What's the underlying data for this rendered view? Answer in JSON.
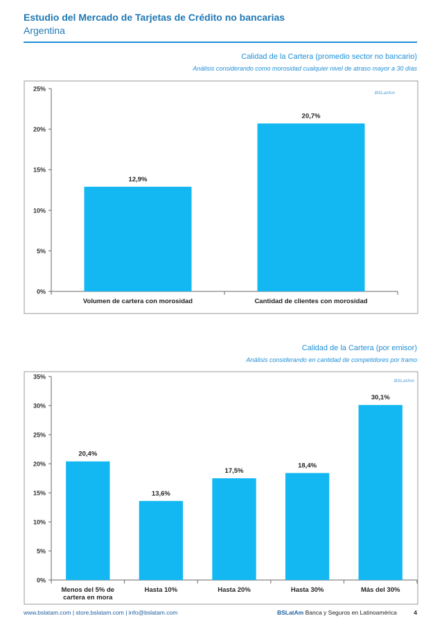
{
  "header": {
    "title": "Estudio del Mercado de Tarjetas de Crédito no bancarias",
    "subtitle": "Argentina"
  },
  "section1": {
    "title": "Calidad de la Cartera (promedio sector no bancario)",
    "subtitle": "Análisis considerando como morosidad cualquier nivel de atraso mayor a 30 días"
  },
  "section2": {
    "title": "Calidad de la Cartera (por emisor)",
    "subtitle": "Análisis considerando en cantidad de competidores por tramo"
  },
  "chart_data": [
    {
      "type": "bar",
      "watermark": "BSLatAm",
      "categories": [
        "Volumen de cartera con morosidad",
        "Cantidad de clientes con morosidad"
      ],
      "values": [
        12.9,
        20.7
      ],
      "value_labels": [
        "12,9%",
        "20,7%"
      ],
      "yticks": [
        "0%",
        "5%",
        "10%",
        "15%",
        "20%",
        "25%"
      ],
      "ylim": [
        0,
        25
      ],
      "grid": false,
      "bar_color": "#13b7f2"
    },
    {
      "type": "bar",
      "watermark": "BSLatAm",
      "categories": [
        "Menos del 5% de cartera en mora",
        "Hasta 10%",
        "Hasta 20%",
        "Hasta 30%",
        "Más del 30%"
      ],
      "values": [
        20.4,
        13.6,
        17.5,
        18.4,
        30.1
      ],
      "value_labels": [
        "20,4%",
        "13,6%",
        "17,5%",
        "18,4%",
        "30,1%"
      ],
      "yticks": [
        "0%",
        "5%",
        "10%",
        "15%",
        "20%",
        "25%",
        "30%",
        "35%"
      ],
      "ylim": [
        0,
        35
      ],
      "grid": false,
      "bar_color": "#13b7f2"
    }
  ],
  "footer": {
    "links": "www.bslatam.com | store.bslatam.com | info@bslatam.com",
    "brand": "BSLatAm",
    "brand_desc": "Banca y Seguros en Latinoamérica",
    "page": "4"
  }
}
